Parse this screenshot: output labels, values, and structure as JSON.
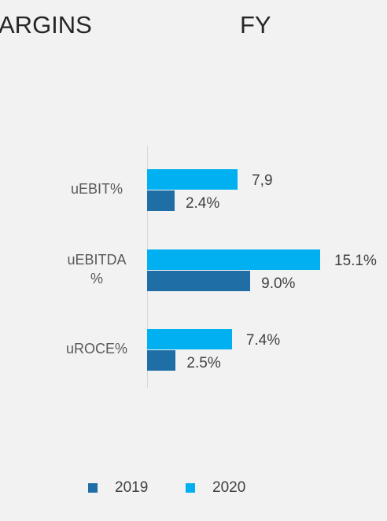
{
  "chart_data": {
    "type": "bar",
    "orientation": "horizontal",
    "title": "ARGINS",
    "subtitle": "FY",
    "categories": [
      "uEBIT%",
      "uEBITDA %",
      "uROCE%"
    ],
    "series": [
      {
        "name": "2019",
        "color": "#1f6fa6",
        "values": [
          2.4,
          9.0,
          2.5
        ],
        "value_labels": [
          "2.4%",
          "9.0%",
          "2.5%"
        ]
      },
      {
        "name": "2020",
        "color": "#00b0f0",
        "values": [
          7.9,
          15.1,
          7.4
        ],
        "value_labels": [
          "7,9",
          "15.1%",
          "7.4%"
        ]
      }
    ],
    "legend": "bottom"
  }
}
